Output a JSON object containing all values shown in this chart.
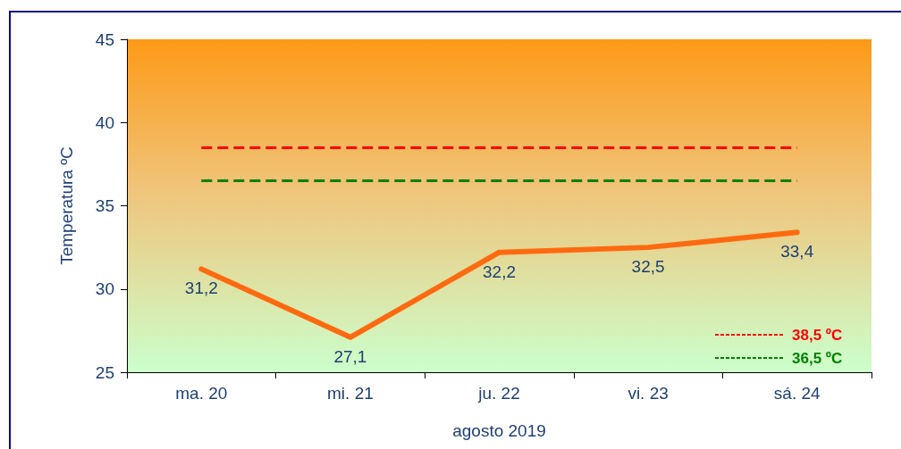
{
  "chart_data": {
    "type": "line",
    "xlabel": "agosto 2019",
    "ylabel": "Temperatura ºC",
    "categories": [
      "ma. 20",
      "mi. 21",
      "ju. 22",
      "vi. 23",
      "sá. 24"
    ],
    "series": [
      {
        "color": "#ff6a10",
        "values": [
          31.2,
          27.1,
          32.2,
          32.5,
          33.4
        ],
        "value_labels": [
          "31,2",
          "27,1",
          "32,2",
          "32,5",
          "33,4"
        ]
      }
    ],
    "ylim": [
      25,
      45
    ],
    "yticks": [
      25,
      30,
      35,
      40,
      45
    ],
    "grid": false,
    "legend": "bottom right",
    "marker": "none",
    "line_style": "solid",
    "ref_lines": [
      {
        "axis": "y",
        "value": 38.5,
        "label": "38,5 ºC",
        "color": "#ff0000",
        "line_style": "dashed"
      },
      {
        "axis": "y",
        "value": 36.5,
        "label": "36,5 ºC",
        "color": "#008000",
        "line_style": "dashed"
      }
    ]
  }
}
